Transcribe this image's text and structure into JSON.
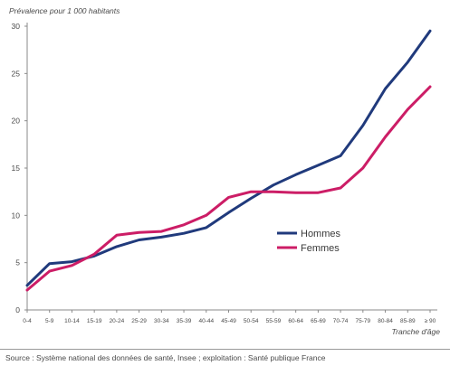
{
  "chart_data": {
    "type": "line",
    "ylabel": "Prévalence pour 1 000 habitants",
    "xlabel": "Tranche d'âge",
    "ylim": [
      0,
      30
    ],
    "yticks": [
      0,
      5,
      10,
      15,
      20,
      25,
      30
    ],
    "grid": false,
    "legend_position": "center-right",
    "categories": [
      "0-4",
      "5-9",
      "10-14",
      "15-19",
      "20-24",
      "25-29",
      "30-34",
      "35-39",
      "40-44",
      "45-49",
      "50-54",
      "55-59",
      "60-64",
      "65-69",
      "70-74",
      "75-79",
      "80-84",
      "85-89",
      "≥ 90"
    ],
    "series": [
      {
        "name": "Hommes",
        "color": "#203a7c",
        "values": [
          2.6,
          4.9,
          5.1,
          5.7,
          6.7,
          7.4,
          7.7,
          8.1,
          8.7,
          10.3,
          11.8,
          13.2,
          14.3,
          15.3,
          16.3,
          19.5,
          23.4,
          26.2,
          29.5
        ]
      },
      {
        "name": "Femmes",
        "color": "#cc1d66",
        "values": [
          2.1,
          4.1,
          4.7,
          5.9,
          7.9,
          8.2,
          8.3,
          9.0,
          10.0,
          11.9,
          12.5,
          12.5,
          12.4,
          12.4,
          12.9,
          15.0,
          18.3,
          21.2,
          23.6
        ]
      }
    ]
  },
  "source": "Source : Système national des données de santé, Insee ; exploitation : Santé publique France"
}
